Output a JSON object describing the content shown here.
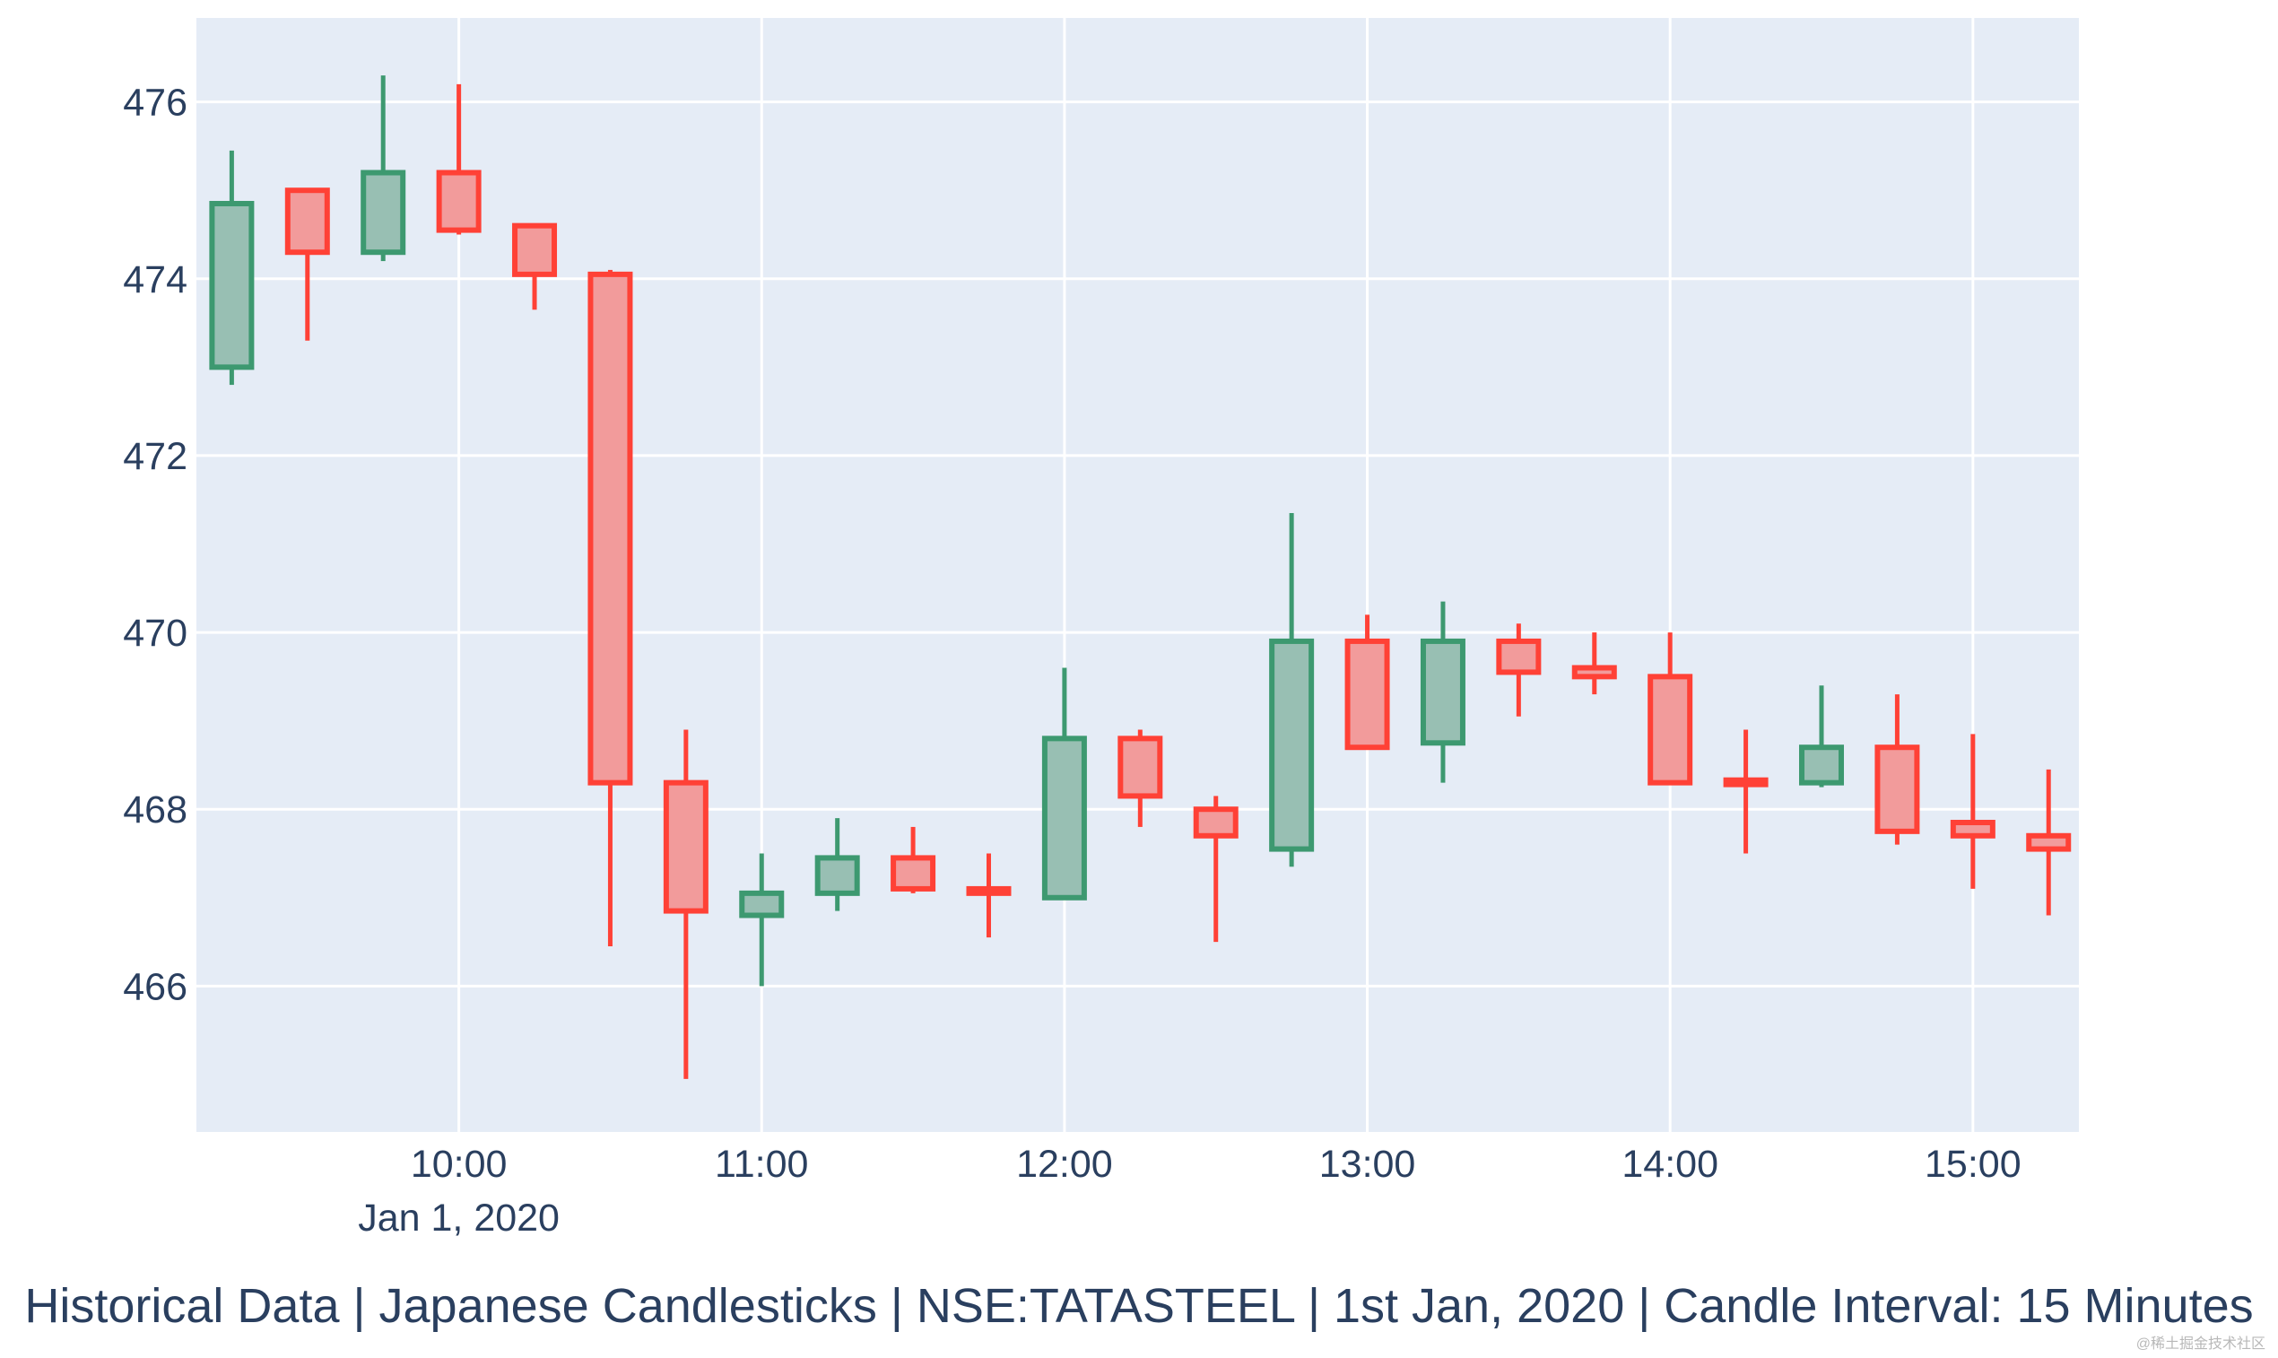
{
  "caption": "Historical Data | Japanese Candlesticks | NSE:TATASTEEL | 1st Jan, 2020 | Candle Interval: 15 Minutes",
  "watermark": "@稀土掘金技术社区",
  "colors": {
    "plot_bg": "#e5ecf6",
    "grid": "#ffffff",
    "increasing_line": "#3d9970",
    "increasing_fill": "#98bfb3",
    "decreasing_line": "#ff4136",
    "decreasing_fill": "#f29b9b",
    "text": "#2a3f5f"
  },
  "chart_data": {
    "type": "candlestick",
    "title": "",
    "xlabel": "",
    "ylabel": "",
    "x_date_label": "Jan 1, 2020",
    "xlim": [
      "09:08",
      "15:21"
    ],
    "ylim": [
      464.35,
      476.95
    ],
    "x_ticks": [
      "10:00",
      "11:00",
      "12:00",
      "13:00",
      "14:00",
      "15:00"
    ],
    "y_ticks": [
      466,
      468,
      470,
      472,
      474,
      476
    ],
    "grid": true,
    "candles": [
      {
        "t": "09:15",
        "open": 473.0,
        "high": 475.45,
        "low": 472.8,
        "close": 474.85
      },
      {
        "t": "09:30",
        "open": 475.0,
        "high": 475.0,
        "low": 473.3,
        "close": 474.3
      },
      {
        "t": "09:45",
        "open": 474.3,
        "high": 476.3,
        "low": 474.2,
        "close": 475.2
      },
      {
        "t": "10:00",
        "open": 475.2,
        "high": 476.2,
        "low": 474.5,
        "close": 474.55
      },
      {
        "t": "10:15",
        "open": 474.6,
        "high": 474.6,
        "low": 473.65,
        "close": 474.05
      },
      {
        "t": "10:30",
        "open": 474.05,
        "high": 474.1,
        "low": 466.45,
        "close": 468.3
      },
      {
        "t": "10:45",
        "open": 468.3,
        "high": 468.9,
        "low": 464.95,
        "close": 466.85
      },
      {
        "t": "11:00",
        "open": 466.8,
        "high": 467.5,
        "low": 466.0,
        "close": 467.05
      },
      {
        "t": "11:15",
        "open": 467.05,
        "high": 467.9,
        "low": 466.85,
        "close": 467.45
      },
      {
        "t": "11:30",
        "open": 467.45,
        "high": 467.8,
        "low": 467.05,
        "close": 467.1
      },
      {
        "t": "11:45",
        "open": 467.1,
        "high": 467.5,
        "low": 466.55,
        "close": 467.05
      },
      {
        "t": "12:00",
        "open": 467.0,
        "high": 469.6,
        "low": 467.0,
        "close": 468.8
      },
      {
        "t": "12:15",
        "open": 468.8,
        "high": 468.9,
        "low": 467.8,
        "close": 468.15
      },
      {
        "t": "12:30",
        "open": 468.0,
        "high": 468.15,
        "low": 466.5,
        "close": 467.7
      },
      {
        "t": "12:45",
        "open": 467.55,
        "high": 471.35,
        "low": 467.35,
        "close": 469.9
      },
      {
        "t": "13:00",
        "open": 469.9,
        "high": 470.2,
        "low": 468.7,
        "close": 468.7
      },
      {
        "t": "13:15",
        "open": 468.75,
        "high": 470.35,
        "low": 468.3,
        "close": 469.9
      },
      {
        "t": "13:30",
        "open": 469.9,
        "high": 470.1,
        "low": 469.05,
        "close": 469.55
      },
      {
        "t": "13:45",
        "open": 469.6,
        "high": 470.0,
        "low": 469.3,
        "close": 469.5
      },
      {
        "t": "14:00",
        "open": 469.5,
        "high": 470.0,
        "low": 468.3,
        "close": 468.3
      },
      {
        "t": "14:15",
        "open": 468.33,
        "high": 468.9,
        "low": 467.5,
        "close": 468.28
      },
      {
        "t": "14:30",
        "open": 468.3,
        "high": 469.4,
        "low": 468.25,
        "close": 468.7
      },
      {
        "t": "14:45",
        "open": 468.7,
        "high": 469.3,
        "low": 467.6,
        "close": 467.75
      },
      {
        "t": "15:00",
        "open": 467.85,
        "high": 468.85,
        "low": 467.1,
        "close": 467.7
      },
      {
        "t": "15:15",
        "open": 467.7,
        "high": 468.45,
        "low": 466.8,
        "close": 467.55
      }
    ]
  }
}
